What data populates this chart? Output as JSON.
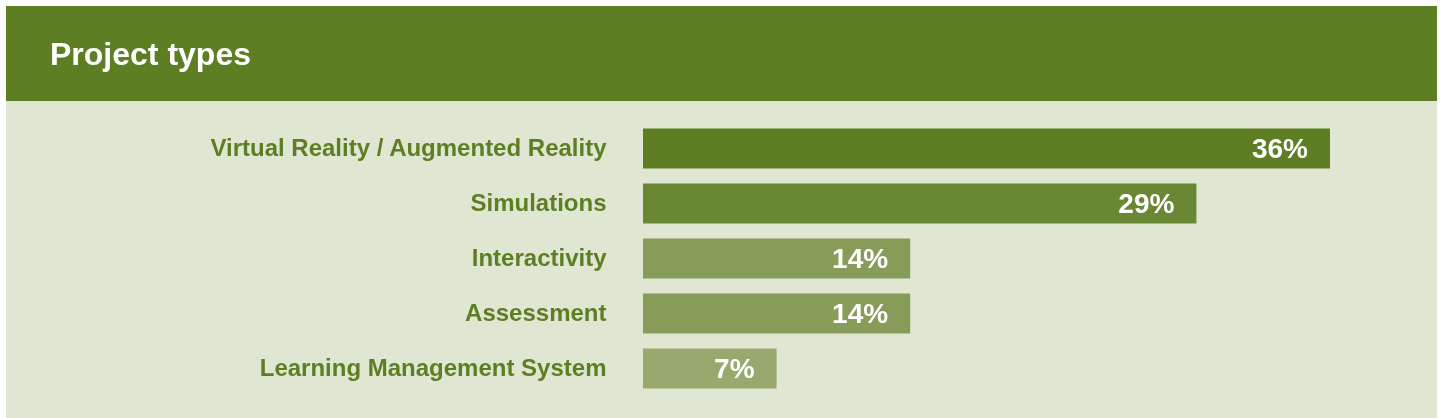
{
  "chart_data": {
    "type": "bar",
    "orientation": "horizontal",
    "title": "Project types",
    "categories": [
      "Virtual Reality / Augmented Reality",
      "Simulations",
      "Interactivity",
      "Assessment",
      "Learning Management System"
    ],
    "values": [
      36,
      29,
      14,
      14,
      7
    ],
    "colors": [
      "#5e7e23",
      "#6a8733",
      "#879c58",
      "#879c58",
      "#97a96d"
    ],
    "value_labels": [
      "36%",
      "29%",
      "14%",
      "14%",
      "7%"
    ],
    "tick_labels": "y"
  }
}
